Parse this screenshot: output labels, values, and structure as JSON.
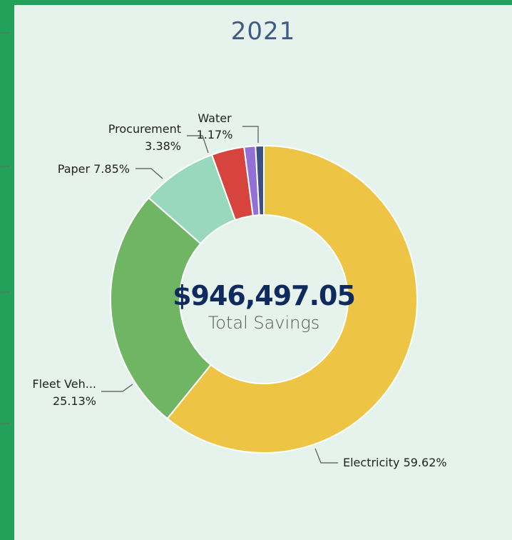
{
  "chart_data": {
    "type": "pie",
    "title": "2021",
    "center_value": "$946,497.05",
    "center_label": "Total Savings",
    "slices": [
      {
        "name": "Electricity",
        "percent": 59.62,
        "color": "#edc444"
      },
      {
        "name": "Fleet Veh...",
        "percent": 25.13,
        "color": "#70b563"
      },
      {
        "name": "Paper",
        "percent": 7.85,
        "color": "#98d9bd"
      },
      {
        "name": "Procurement",
        "percent": 3.38,
        "color": "#d7443d"
      },
      {
        "name": "Water",
        "percent": 1.17,
        "color": "#9370d6"
      },
      {
        "name": "",
        "percent": 0.85,
        "color": "#3e4f86"
      }
    ],
    "labels": {
      "electricity": "Electricity 59.62%",
      "fleet_name": "Fleet Veh...",
      "fleet_pct": "25.13%",
      "paper": "Paper 7.85%",
      "procurement_name": "Procurement",
      "procurement_pct": "3.38%",
      "water_name": "Water",
      "water_pct": "1.17%"
    }
  },
  "colors": {
    "frame_accent": "#23a05a",
    "background": "#e6f3ec"
  }
}
